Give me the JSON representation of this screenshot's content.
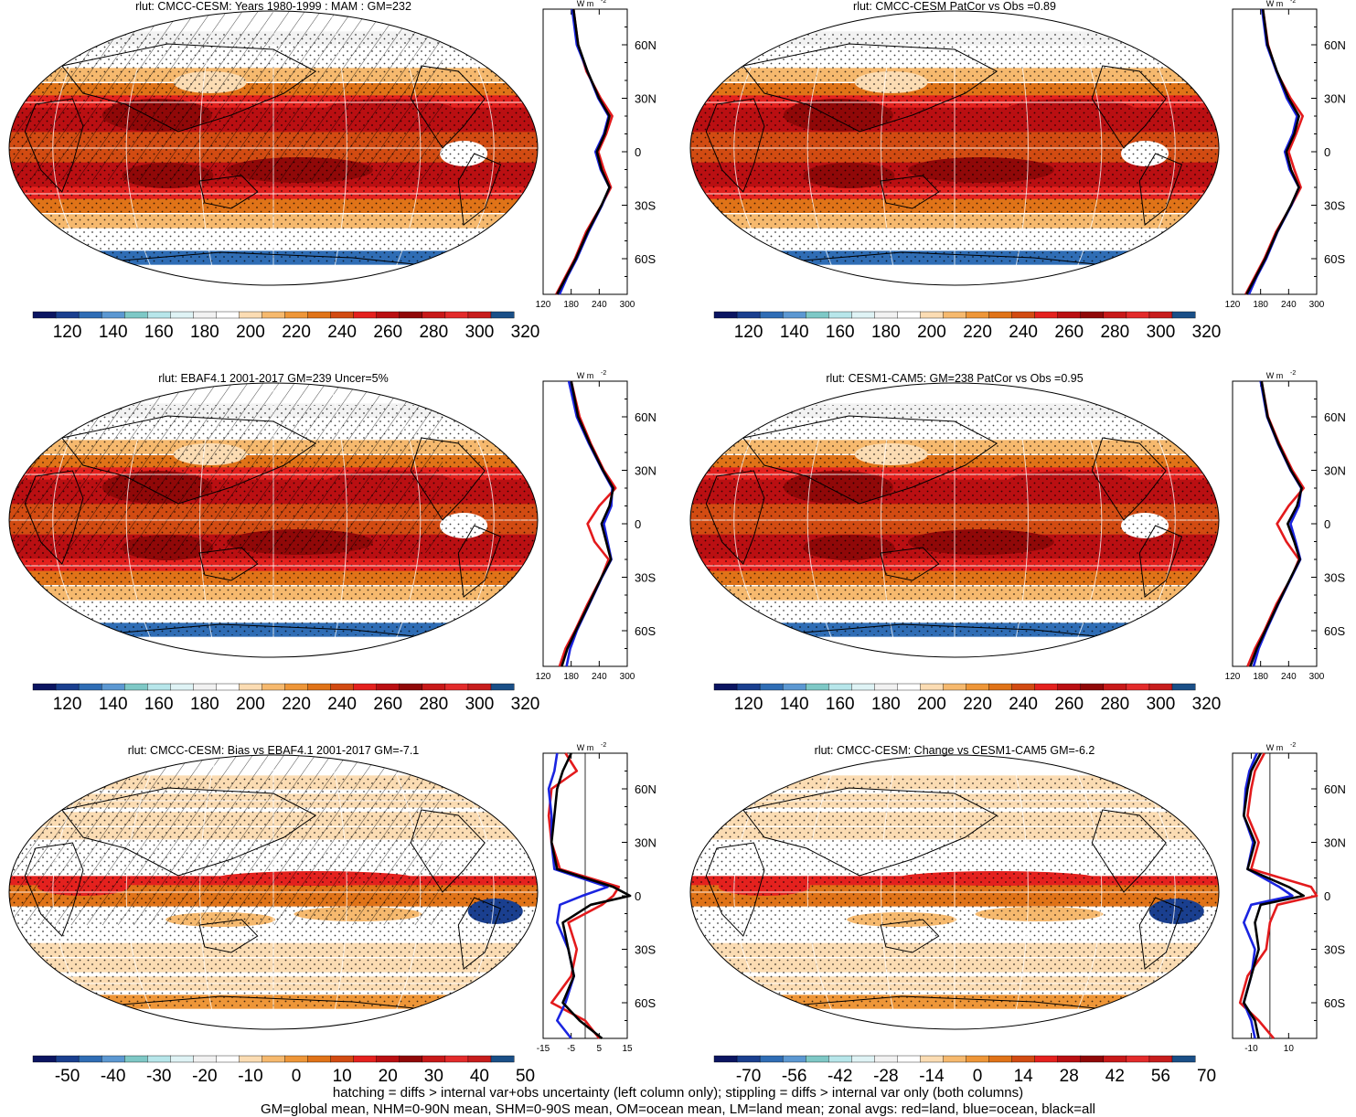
{
  "colors": {
    "ramp": [
      "#0b1561",
      "#1a3f8f",
      "#2f6db5",
      "#5c98d2",
      "#7ec8c6",
      "#b7e6ea",
      "#dff3f5",
      "#f2f2f2",
      "#ffffff",
      "#fbdcb3",
      "#f6b96e",
      "#ee9638",
      "#e07318",
      "#d24b12",
      "#e4211e",
      "#ba0f12",
      "#900808",
      "#c81919",
      "#e32b2b",
      "#c71d1d",
      "#1a4f87"
    ],
    "land_line": "#e31a1c",
    "ocean_line": "#1a24e0",
    "all_line": "#000000"
  },
  "units": "W m",
  "units_exp": "-2",
  "lat_ticks": [
    "60N",
    "30N",
    "0",
    "30S",
    "60S"
  ],
  "panels": [
    {
      "title": "rlut: CMCC-CESM: Years 1980-1999 : MAM : GM=232",
      "colorbar_labels": [
        "120",
        "140",
        "160",
        "180",
        "200",
        "220",
        "240",
        "260",
        "280",
        "300",
        "320"
      ],
      "profile_ticks": [
        "120",
        "180",
        "240",
        "300"
      ]
    },
    {
      "title": "rlut: CMCC-CESM PatCor vs Obs =0.89",
      "colorbar_labels": [
        "120",
        "140",
        "160",
        "180",
        "200",
        "220",
        "240",
        "260",
        "280",
        "300",
        "320"
      ],
      "profile_ticks": [
        "120",
        "180",
        "240",
        "300"
      ]
    },
    {
      "title": "rlut: EBAF4.1 2001-2017 GM=239 Uncer=5%",
      "colorbar_labels": [
        "120",
        "140",
        "160",
        "180",
        "200",
        "220",
        "240",
        "260",
        "280",
        "300",
        "320"
      ],
      "profile_ticks": [
        "120",
        "180",
        "240",
        "300"
      ]
    },
    {
      "title": "rlut: CESM1-CAM5: GM=238 PatCor vs Obs =0.95",
      "colorbar_labels": [
        "120",
        "140",
        "160",
        "180",
        "200",
        "220",
        "240",
        "260",
        "280",
        "300",
        "320"
      ],
      "profile_ticks": [
        "120",
        "180",
        "240",
        "300"
      ]
    },
    {
      "title": "rlut: CMCC-CESM: Bias vs EBAF4.1 2001-2017 GM=-7.1",
      "colorbar_labels": [
        "-50",
        "-40",
        "-30",
        "-20",
        "-10",
        "0",
        "10",
        "20",
        "30",
        "40",
        "50"
      ],
      "profile_ticks": [
        "-15",
        "-5",
        "5",
        "15"
      ]
    },
    {
      "title": "rlut: CMCC-CESM: Change vs CESM1-CAM5 GM=-6.2",
      "colorbar_labels": [
        "-70",
        "-56",
        "-42",
        "-28",
        "-14",
        "0",
        "14",
        "28",
        "42",
        "56",
        "70"
      ],
      "profile_ticks": [
        "-10",
        "10"
      ]
    }
  ],
  "chart_data": [
    {
      "type": "heatmap",
      "title": "rlut: CMCC-CESM: Years 1980-1999 : MAM : GM=232",
      "colorbar": [
        120,
        140,
        160,
        180,
        200,
        220,
        240,
        260,
        280,
        300,
        320
      ],
      "zonal_mean": {
        "lat": [
          80,
          60,
          45,
          30,
          20,
          10,
          0,
          -10,
          -20,
          -30,
          -45,
          -60,
          -70,
          -80
        ],
        "all": [
          185,
          195,
          215,
          240,
          262,
          252,
          235,
          245,
          262,
          245,
          215,
          190,
          170,
          150
        ],
        "land": [
          185,
          195,
          213,
          243,
          268,
          255,
          238,
          250,
          265,
          245,
          212,
          188,
          168,
          148
        ],
        "ocean": [
          182,
          192,
          215,
          238,
          260,
          250,
          232,
          243,
          262,
          246,
          217,
          192,
          172,
          155
        ]
      }
    },
    {
      "type": "heatmap",
      "title": "rlut: CMCC-CESM PatCor vs Obs =0.89",
      "colorbar": [
        120,
        140,
        160,
        180,
        200,
        220,
        240,
        260,
        280,
        300,
        320
      ],
      "zonal_mean": {
        "lat": [
          80,
          60,
          45,
          30,
          20,
          10,
          0,
          -10,
          -20,
          -30,
          -45,
          -60,
          -70,
          -80
        ],
        "all": [
          185,
          195,
          215,
          240,
          262,
          252,
          235,
          245,
          262,
          245,
          215,
          190,
          170,
          150
        ],
        "land": [
          185,
          196,
          214,
          244,
          270,
          256,
          240,
          252,
          266,
          246,
          213,
          188,
          168,
          148
        ],
        "ocean": [
          183,
          193,
          214,
          236,
          258,
          249,
          232,
          242,
          262,
          246,
          216,
          192,
          172,
          155
        ]
      }
    },
    {
      "type": "heatmap",
      "title": "rlut: EBAF4.1 2001-2017 GM=239 Uncer=5%",
      "colorbar": [
        120,
        140,
        160,
        180,
        200,
        220,
        240,
        260,
        280,
        300,
        320
      ],
      "zonal_mean": {
        "lat": [
          80,
          60,
          45,
          30,
          20,
          10,
          0,
          -10,
          -20,
          -30,
          -45,
          -60,
          -70,
          -80
        ],
        "all": [
          180,
          195,
          220,
          248,
          270,
          262,
          245,
          255,
          265,
          245,
          218,
          190,
          172,
          160
        ],
        "land": [
          180,
          198,
          222,
          250,
          275,
          240,
          215,
          230,
          260,
          245,
          215,
          188,
          168,
          155
        ],
        "ocean": [
          175,
          192,
          218,
          247,
          268,
          266,
          250,
          258,
          266,
          246,
          219,
          192,
          178,
          170
        ]
      }
    },
    {
      "type": "heatmap",
      "title": "rlut: CESM1-CAM5: GM=238 PatCor vs Obs =0.95",
      "colorbar": [
        120,
        140,
        160,
        180,
        200,
        220,
        240,
        260,
        280,
        300,
        320
      ],
      "zonal_mean": {
        "lat": [
          80,
          60,
          45,
          30,
          20,
          10,
          0,
          -10,
          -20,
          -30,
          -45,
          -60,
          -70,
          -80
        ],
        "all": [
          182,
          195,
          218,
          245,
          268,
          258,
          238,
          252,
          264,
          245,
          217,
          190,
          172,
          158
        ],
        "land": [
          182,
          196,
          220,
          248,
          272,
          240,
          215,
          235,
          262,
          246,
          214,
          188,
          168,
          152
        ],
        "ocean": [
          180,
          194,
          217,
          244,
          267,
          262,
          244,
          255,
          265,
          246,
          218,
          192,
          176,
          165
        ]
      }
    },
    {
      "type": "heatmap",
      "title": "rlut: CMCC-CESM: Bias vs EBAF4.1 2001-2017 GM=-7.1",
      "colorbar": [
        -50,
        -40,
        -30,
        -20,
        -10,
        0,
        10,
        20,
        30,
        40,
        50
      ],
      "zonal_mean": {
        "lat": [
          80,
          70,
          60,
          45,
          30,
          15,
          5,
          0,
          -5,
          -15,
          -30,
          -45,
          -60,
          -70,
          -80
        ],
        "all": [
          -5,
          -8,
          -10,
          -11,
          -12,
          -10,
          10,
          16,
          2,
          -8,
          -6,
          -4,
          -8,
          -2,
          6
        ],
        "land": [
          -7,
          -3,
          -12,
          -13,
          -12,
          -9,
          12,
          10,
          6,
          -6,
          -3,
          -5,
          -12,
          0,
          5
        ],
        "ocean": [
          -10,
          -11,
          -13,
          -12,
          -12,
          -11,
          8,
          -1,
          -9,
          -10,
          -6,
          -4,
          -7,
          -10,
          -5
        ]
      }
    },
    {
      "type": "heatmap",
      "title": "rlut: CMCC-CESM: Change vs CESM1-CAM5 GM=-6.2",
      "colorbar": [
        -70,
        -56,
        -42,
        -28,
        -14,
        0,
        14,
        28,
        42,
        56,
        70
      ],
      "zonal_mean": {
        "lat": [
          80,
          70,
          60,
          45,
          30,
          15,
          5,
          0,
          -5,
          -15,
          -30,
          -45,
          -60,
          -70,
          -80
        ],
        "all": [
          -5,
          -10,
          -12,
          -14,
          -8,
          -12,
          10,
          18,
          -5,
          -8,
          -6,
          -10,
          -14,
          -8,
          -6
        ],
        "land": [
          -3,
          -8,
          -10,
          -12,
          -6,
          -10,
          22,
          25,
          4,
          0,
          -2,
          -12,
          -16,
          -6,
          2
        ],
        "ocean": [
          -7,
          -11,
          -13,
          -14,
          -9,
          -12,
          5,
          12,
          -10,
          -14,
          -8,
          -10,
          -14,
          -10,
          -8
        ]
      }
    }
  ],
  "footer": {
    "line1": "hatching = diffs > internal var+obs uncertainty (left column only); stippling = diffs > internal var only (both columns)",
    "line2": "GM=global mean, NHM=0-90N mean, SHM=0-90S mean, OM=ocean mean, LM=land mean; zonal avgs: red=land, blue=ocean, black=all"
  }
}
